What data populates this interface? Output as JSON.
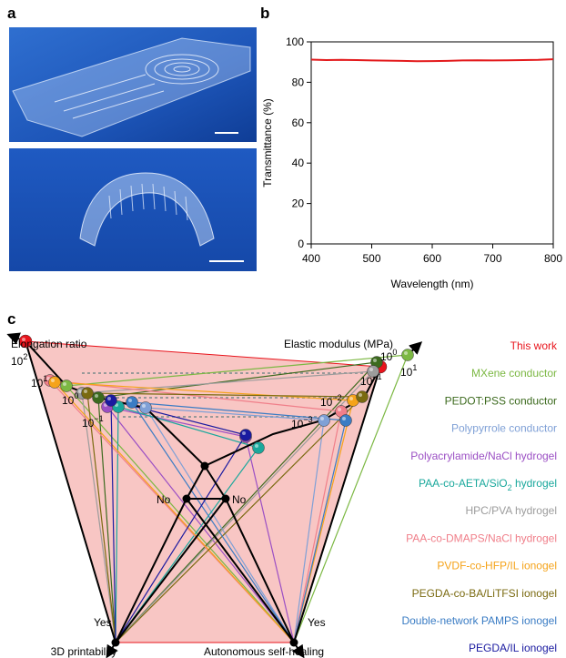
{
  "panels": {
    "a": "a",
    "b": "b",
    "c": "c"
  },
  "chart_data": {
    "type": "line",
    "x": [
      400,
      425,
      450,
      475,
      500,
      525,
      550,
      575,
      600,
      625,
      650,
      675,
      700,
      725,
      750,
      775,
      800
    ],
    "series": [
      {
        "color": "#e31a1c",
        "values": [
          91.2,
          91.0,
          91.1,
          91.0,
          90.8,
          90.7,
          90.6,
          90.4,
          90.5,
          90.6,
          90.8,
          90.9,
          90.8,
          90.9,
          91.0,
          91.1,
          91.4
        ]
      }
    ],
    "xlabel": "Wavelength (nm)",
    "ylabel": "Transmittance (%)",
    "xlim": [
      400,
      800
    ],
    "ylim": [
      0,
      100
    ],
    "xticks": [
      400,
      500,
      600,
      700,
      800
    ],
    "yticks": [
      0,
      20,
      40,
      60,
      80,
      100
    ]
  },
  "diagram": {
    "axes": {
      "elongation": "Elongation ratio",
      "modulus": "Elastic modulus (MPa)",
      "printability": "3D printability",
      "healing": "Autonomous self-healing"
    },
    "node_labels": [
      "No",
      "No",
      "Yes",
      "Yes"
    ],
    "elongation_ticks": [
      {
        "base": "10",
        "exp": "2"
      },
      {
        "base": "10",
        "exp": "1"
      },
      {
        "base": "10",
        "exp": "0"
      },
      {
        "base": "10",
        "exp": "−1"
      }
    ],
    "modulus_ticks": [
      {
        "base": "10",
        "exp": "1"
      },
      {
        "base": "10",
        "exp": "0"
      },
      {
        "base": "10",
        "exp": "−1"
      },
      {
        "base": "10",
        "exp": "−2"
      },
      {
        "base": "10",
        "exp": "−3"
      }
    ]
  },
  "legend": [
    {
      "parts": [
        {
          "text": "This work"
        }
      ],
      "color": "#e8141c"
    },
    {
      "parts": [
        {
          "text": "MXene conductor"
        }
      ],
      "color": "#7cb843"
    },
    {
      "parts": [
        {
          "text": "PEDOT:PSS conductor"
        }
      ],
      "color": "#3c6a1e"
    },
    {
      "parts": [
        {
          "text": "Polypyrrole conductor"
        }
      ],
      "color": "#7fa0d6"
    },
    {
      "parts": [
        {
          "text": "Polyacrylamide/NaCl hydrogel"
        }
      ],
      "color": "#9b4fc4"
    },
    {
      "parts": [
        {
          "text": "PAA-co-AETA/SiO"
        },
        {
          "sub": "2"
        },
        {
          "text": " hydrogel"
        }
      ],
      "color": "#1aa89c"
    },
    {
      "parts": [
        {
          "text": "HPC/PVA hydrogel"
        }
      ],
      "color": "#9c9c9c"
    },
    {
      "parts": [
        {
          "text": "PAA-co-DMAPS/NaCl hydrogel"
        }
      ],
      "color": "#f07f8a"
    },
    {
      "parts": [
        {
          "text": "PVDF-co-HFP/IL ionogel"
        }
      ],
      "color": "#f5a31a"
    },
    {
      "parts": [
        {
          "text": "PEGDA-co-BA/LiTFSI ionogel"
        }
      ],
      "color": "#7a6a10"
    },
    {
      "parts": [
        {
          "text": "Double-network PAMPS ionogel"
        }
      ],
      "color": "#3a7cc4"
    },
    {
      "parts": [
        {
          "text": "PEGDA/IL ionogel"
        }
      ],
      "color": "#1a1aa0"
    }
  ]
}
